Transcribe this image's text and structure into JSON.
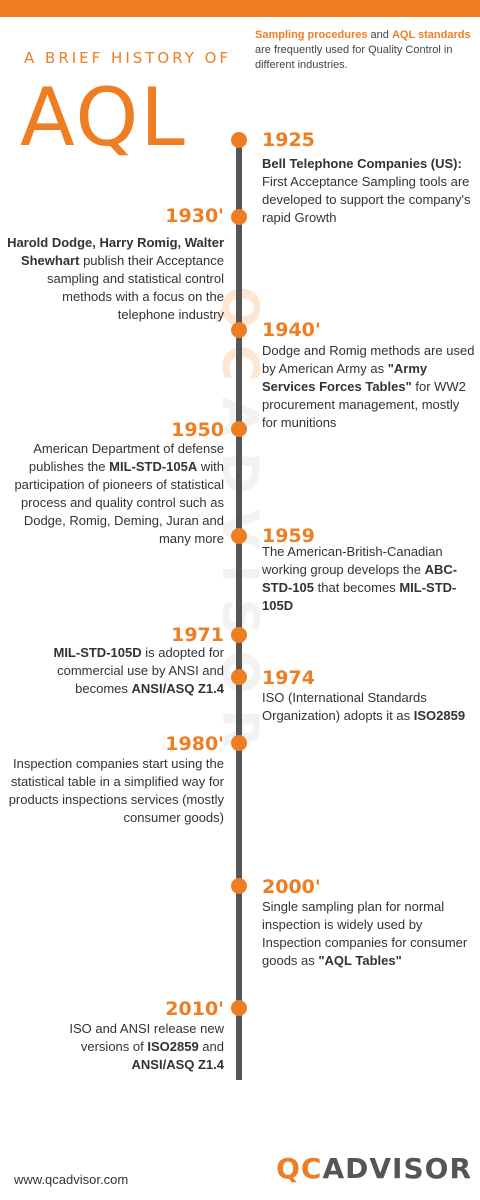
{
  "header": {
    "kicker": "A BRIEF HISTORY OF",
    "title": "AQL",
    "intro": {
      "b1": "Sampling procedures",
      "t1": " and ",
      "b2": "AQL standards",
      "t2": " are frequently used for Quality Control in different industries."
    }
  },
  "watermark": {
    "qc": "QC",
    "rest": "ADVISOR"
  },
  "events": {
    "e1925": {
      "year": "1925",
      "b1": "Bell Telephone Companies (US):",
      "t1": " First Acceptance Sampling tools are developed to support the company's rapid Growth"
    },
    "e1930": {
      "year": "1930'",
      "b1": "Harold Dodge, Harry Romig, Walter Shewhart",
      "t1": " publish their Acceptance sampling and statistical control methods with a focus on the telephone industry"
    },
    "e1940": {
      "year": "1940'",
      "t1": "Dodge and Romig methods are used by American Army as ",
      "b1": "\"Army Services Forces Tables\"",
      "t2": " for WW2 procurement management, mostly for munitions"
    },
    "e1950": {
      "year": "1950",
      "t1": "American Department of defense publishes the ",
      "b1": "MIL-STD-105A",
      "t2": " with participation of pioneers of statistical process and quality control such as Dodge, Romig, Deming, Juran and many more"
    },
    "e1959": {
      "year": "1959",
      "t1": "The American-British-Canadian working group develops the ",
      "b1": "ABC-STD-105",
      "t2": " that becomes ",
      "b2": "MIL-STD-105D"
    },
    "e1971": {
      "year": "1971",
      "b1": "MIL-STD-105D",
      "t1": " is adopted for commercial use by ANSI and becomes ",
      "b2": "ANSI/ASQ Z1.4"
    },
    "e1974": {
      "year": "1974",
      "t1": "ISO (International Standards Organization) adopts it as ",
      "b1": "ISO2859"
    },
    "e1980": {
      "year": "1980'",
      "t1": "Inspection companies start using the statistical table in a simplified way for products inspections services (mostly consumer goods)"
    },
    "e2000": {
      "year": "2000'",
      "t1": "Single sampling plan for normal inspection is widely used by Inspection companies for consumer goods as ",
      "b1": "\"AQL Tables\""
    },
    "e2010": {
      "year": "2010'",
      "t1": "ISO and ANSI release new versions of ",
      "b1": "ISO2859",
      "t2": " and ",
      "b2": "ANSI/ASQ Z1.4"
    }
  },
  "footer": {
    "url": "www.qcadvisor.com",
    "logo_qc": "QC",
    "logo_rest": "ADVISOR"
  },
  "colors": {
    "accent": "#ef7d22",
    "line": "#555555",
    "text": "#333333"
  }
}
